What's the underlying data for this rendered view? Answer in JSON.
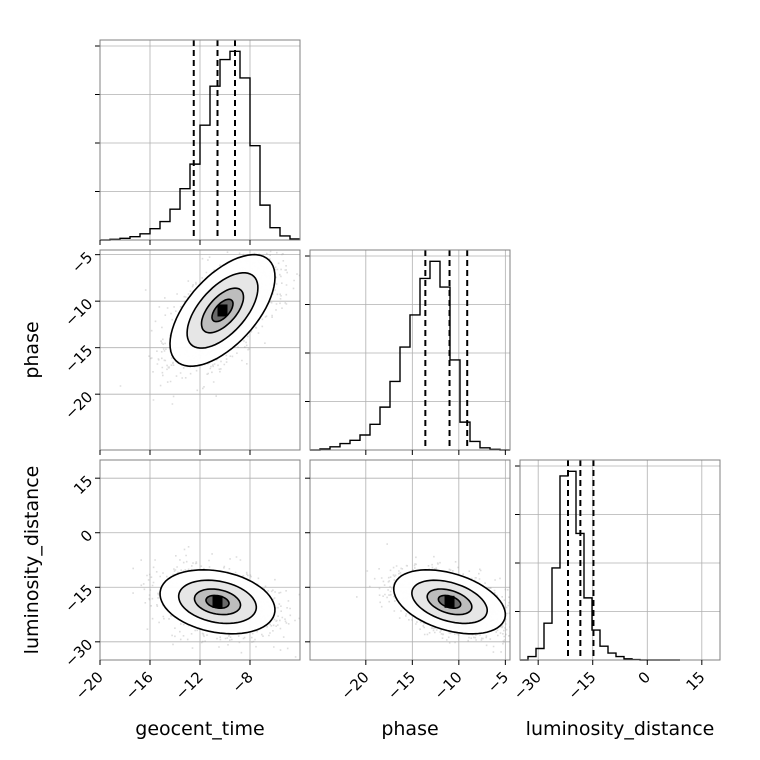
{
  "chart_data": {
    "type": "corner",
    "parameters": [
      {
        "name": "geocent_time",
        "xlim": [
          -20,
          -4
        ],
        "ticks": [
          -20,
          -16,
          -12,
          -8
        ],
        "tick_labels": [
          "−20",
          "−16",
          "−12",
          "−8"
        ],
        "quantiles": [
          -12.5,
          -10.6,
          -9.2
        ],
        "hist_x0": -20,
        "hist_bin": 0.8,
        "hist_values": [
          0,
          0.3,
          0.8,
          1.6,
          3,
          5.5,
          9,
          15,
          25,
          37,
          56,
          75,
          88,
          92,
          79,
          46,
          17,
          6,
          2,
          0.5
        ]
      },
      {
        "name": "phase",
        "xlim": [
          -26,
          -4.5
        ],
        "ticks": [
          -20,
          -15,
          -10,
          -5
        ],
        "tick_labels": [
          "−20",
          "−15",
          "−10",
          "−5"
        ],
        "quantiles": [
          -13.6,
          -11,
          -9.1
        ],
        "hist_x0": -26,
        "hist_bin": 1.075,
        "hist_values": [
          0,
          0.5,
          1.5,
          3,
          4.5,
          7,
          12,
          20,
          32,
          48,
          63,
          80,
          88,
          76,
          42,
          13,
          4,
          1,
          0.3,
          0
        ]
      },
      {
        "name": "luminosity_distance",
        "xlim": [
          -35,
          20
        ],
        "ticks": [
          -30,
          -15,
          0,
          15
        ],
        "tick_labels": [
          "−30",
          "−15",
          "0",
          "15"
        ],
        "quantiles": [
          -21.8,
          -18.4,
          -14.8
        ],
        "hist_x0": -35,
        "hist_bin": 2.2,
        "hist_values": [
          0,
          1.5,
          5,
          16,
          40,
          80,
          82,
          55,
          27,
          13,
          6,
          3,
          1.5,
          0.5,
          0.2,
          0,
          0,
          0,
          0,
          0
        ]
      }
    ],
    "pairs": [
      {
        "x": 0,
        "y": 1,
        "mean": [
          -10.2,
          -11
        ],
        "std": [
          2.1,
          3.0
        ],
        "corr": 0.6
      },
      {
        "x": 0,
        "y": 2,
        "mean": [
          -10.6,
          -19
        ],
        "std": [
          2.3,
          4.4
        ],
        "corr": -0.25
      },
      {
        "x": 1,
        "y": 2,
        "mean": [
          -11,
          -19
        ],
        "std": [
          3.0,
          4.4
        ],
        "corr": -0.4
      }
    ],
    "colors": {
      "hist": "#000000",
      "quantile": "#000000",
      "grid": "#b0b0b0",
      "points": "#9e9e9e"
    }
  }
}
